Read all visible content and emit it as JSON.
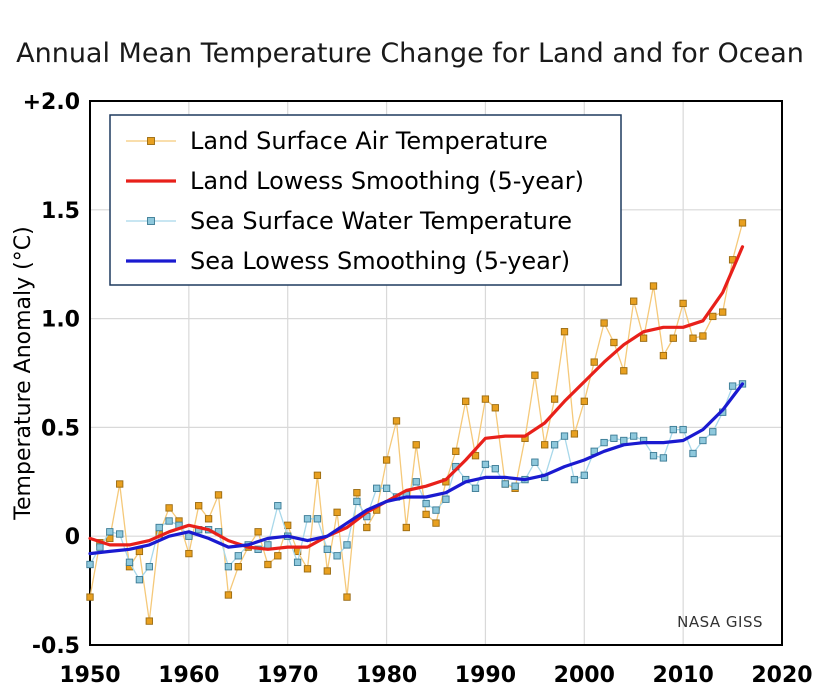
{
  "chart_data": {
    "type": "line",
    "title": "Annual Mean Temperature Change for Land and for Ocean",
    "xlabel": "",
    "ylabel": "Temperature Anomaly (°C)",
    "xlim": [
      1950,
      2020
    ],
    "ylim": [
      -0.5,
      2.0
    ],
    "x_ticks": [
      "1950",
      "1960",
      "1970",
      "1980",
      "1990",
      "2000",
      "2010",
      "2020"
    ],
    "y_ticks": [
      {
        "value": 2.0,
        "label": "+2.0"
      },
      {
        "value": 1.5,
        "label": "1.5"
      },
      {
        "value": 1.0,
        "label": "1.0"
      },
      {
        "value": 0.5,
        "label": "0.5"
      },
      {
        "value": 0.0,
        "label": "0"
      },
      {
        "value": -0.5,
        "label": "-0.5"
      }
    ],
    "grid": true,
    "legend_position": "top-left",
    "watermark": "NASA GISS",
    "series": [
      {
        "name": "Land Surface Air Temperature",
        "style": "line-markers",
        "line_color": "#f5c97a",
        "marker_fill": "#e8a020",
        "marker_stroke": "#9a6a10",
        "x": [
          1950,
          1951,
          1952,
          1953,
          1954,
          1955,
          1956,
          1957,
          1958,
          1959,
          1960,
          1961,
          1962,
          1963,
          1964,
          1965,
          1966,
          1967,
          1968,
          1969,
          1970,
          1971,
          1972,
          1973,
          1974,
          1975,
          1976,
          1977,
          1978,
          1979,
          1980,
          1981,
          1982,
          1983,
          1984,
          1985,
          1986,
          1987,
          1988,
          1989,
          1990,
          1991,
          1992,
          1993,
          1994,
          1995,
          1996,
          1997,
          1998,
          1999,
          2000,
          2001,
          2002,
          2003,
          2004,
          2005,
          2006,
          2007,
          2008,
          2009,
          2010,
          2011,
          2012,
          2013,
          2014,
          2015,
          2016
        ],
        "values": [
          -0.28,
          -0.03,
          -0.01,
          0.24,
          -0.14,
          -0.07,
          -0.39,
          0.01,
          0.13,
          0.07,
          -0.08,
          0.14,
          0.08,
          0.19,
          -0.27,
          -0.14,
          -0.05,
          0.02,
          -0.13,
          -0.09,
          0.05,
          -0.07,
          -0.15,
          0.28,
          -0.16,
          0.11,
          -0.28,
          0.2,
          0.04,
          0.12,
          0.35,
          0.53,
          0.04,
          0.42,
          0.1,
          0.06,
          0.25,
          0.39,
          0.62,
          0.37,
          0.63,
          0.59,
          0.24,
          0.22,
          0.45,
          0.74,
          0.42,
          0.63,
          0.94,
          0.47,
          0.62,
          0.8,
          0.98,
          0.89,
          0.76,
          1.08,
          0.91,
          1.15,
          0.83,
          0.91,
          1.07,
          0.91,
          0.92,
          1.01,
          1.03,
          1.27,
          1.44
        ]
      },
      {
        "name": "Land Lowess Smoothing (5-year)",
        "style": "line",
        "line_color": "#e8201a",
        "x": [
          1950,
          1952,
          1954,
          1956,
          1958,
          1960,
          1962,
          1964,
          1966,
          1968,
          1970,
          1972,
          1974,
          1976,
          1978,
          1980,
          1982,
          1984,
          1986,
          1988,
          1990,
          1992,
          1994,
          1996,
          1998,
          2000,
          2002,
          2004,
          2006,
          2008,
          2010,
          2012,
          2014,
          2016
        ],
        "values": [
          -0.01,
          -0.04,
          -0.04,
          -0.02,
          0.02,
          0.05,
          0.03,
          -0.02,
          -0.05,
          -0.06,
          -0.05,
          -0.05,
          0.0,
          0.04,
          0.11,
          0.16,
          0.21,
          0.23,
          0.26,
          0.35,
          0.45,
          0.46,
          0.46,
          0.52,
          0.62,
          0.71,
          0.8,
          0.88,
          0.94,
          0.96,
          0.96,
          0.99,
          1.12,
          1.33
        ]
      },
      {
        "name": "Sea Surface Water Temperature",
        "style": "line-markers",
        "line_color": "#a8d8ea",
        "marker_fill": "#8ec8dc",
        "marker_stroke": "#3a7a94",
        "x": [
          1950,
          1951,
          1952,
          1953,
          1954,
          1955,
          1956,
          1957,
          1958,
          1959,
          1960,
          1961,
          1962,
          1963,
          1964,
          1965,
          1966,
          1967,
          1968,
          1969,
          1970,
          1971,
          1972,
          1973,
          1974,
          1975,
          1976,
          1977,
          1978,
          1979,
          1980,
          1981,
          1982,
          1983,
          1984,
          1985,
          1986,
          1987,
          1988,
          1989,
          1990,
          1991,
          1992,
          1993,
          1994,
          1995,
          1996,
          1997,
          1998,
          1999,
          2000,
          2001,
          2002,
          2003,
          2004,
          2005,
          2006,
          2007,
          2008,
          2009,
          2010,
          2011,
          2012,
          2013,
          2014,
          2015,
          2016
        ],
        "values": [
          -0.13,
          -0.05,
          0.02,
          0.01,
          -0.12,
          -0.2,
          -0.14,
          0.04,
          0.07,
          0.05,
          0.0,
          0.03,
          0.03,
          0.02,
          -0.14,
          -0.09,
          -0.04,
          -0.06,
          -0.04,
          0.14,
          0.0,
          -0.12,
          0.08,
          0.08,
          -0.06,
          -0.09,
          -0.04,
          0.16,
          0.09,
          0.22,
          0.22,
          0.18,
          0.19,
          0.25,
          0.15,
          0.12,
          0.17,
          0.32,
          0.26,
          0.22,
          0.33,
          0.31,
          0.24,
          0.23,
          0.26,
          0.34,
          0.27,
          0.42,
          0.46,
          0.26,
          0.28,
          0.39,
          0.43,
          0.45,
          0.44,
          0.46,
          0.44,
          0.37,
          0.36,
          0.49,
          0.49,
          0.38,
          0.44,
          0.48,
          0.57,
          0.69,
          0.7
        ]
      },
      {
        "name": "Sea Lowess Smoothing (5-year)",
        "style": "line",
        "line_color": "#1a1ad0",
        "x": [
          1950,
          1952,
          1954,
          1956,
          1958,
          1960,
          1962,
          1964,
          1966,
          1968,
          1970,
          1972,
          1974,
          1976,
          1978,
          1980,
          1982,
          1984,
          1986,
          1988,
          1990,
          1992,
          1994,
          1996,
          1998,
          2000,
          2002,
          2004,
          2006,
          2008,
          2010,
          2012,
          2014,
          2016
        ],
        "values": [
          -0.08,
          -0.07,
          -0.06,
          -0.04,
          0.0,
          0.02,
          -0.01,
          -0.05,
          -0.04,
          -0.01,
          0.0,
          -0.02,
          0.0,
          0.06,
          0.12,
          0.16,
          0.18,
          0.18,
          0.2,
          0.25,
          0.27,
          0.27,
          0.26,
          0.28,
          0.32,
          0.35,
          0.39,
          0.42,
          0.43,
          0.43,
          0.44,
          0.49,
          0.58,
          0.7
        ]
      }
    ]
  }
}
